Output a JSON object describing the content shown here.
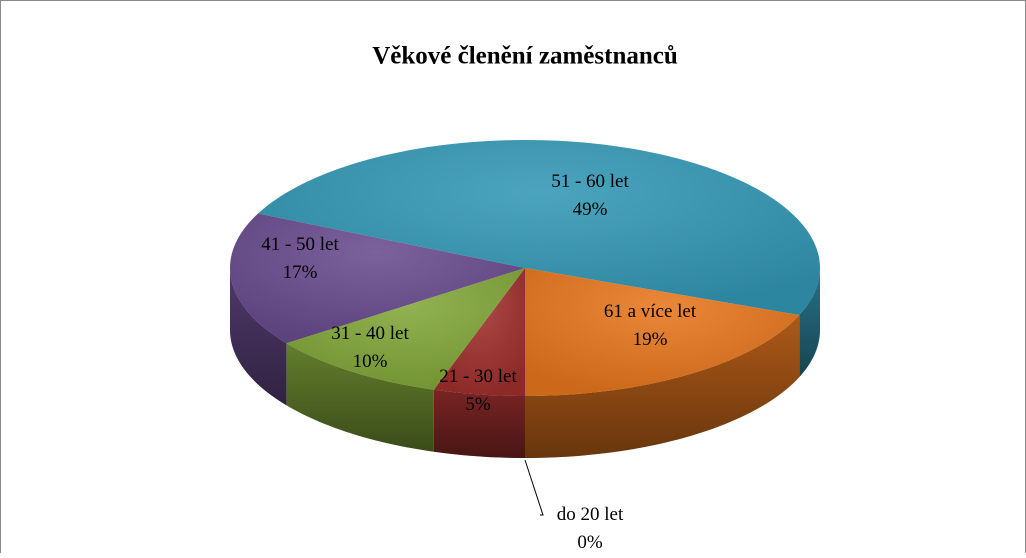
{
  "chart_data": {
    "type": "pie",
    "title": "Věkové členění zaměstnanců",
    "categories": [
      "do 20 let",
      "21 - 30 let",
      "31 - 40 let",
      "41 - 50 let",
      "51 - 60 let",
      "61 a více let"
    ],
    "values": [
      0,
      5,
      10,
      17,
      49,
      19
    ],
    "value_labels": [
      "0%",
      "5%",
      "10%",
      "17%",
      "49%",
      "19%"
    ],
    "colors": [
      "#4f81bd",
      "#a0302e",
      "#83a83a",
      "#6a4c8f",
      "#3398b5",
      "#e7771e"
    ]
  }
}
